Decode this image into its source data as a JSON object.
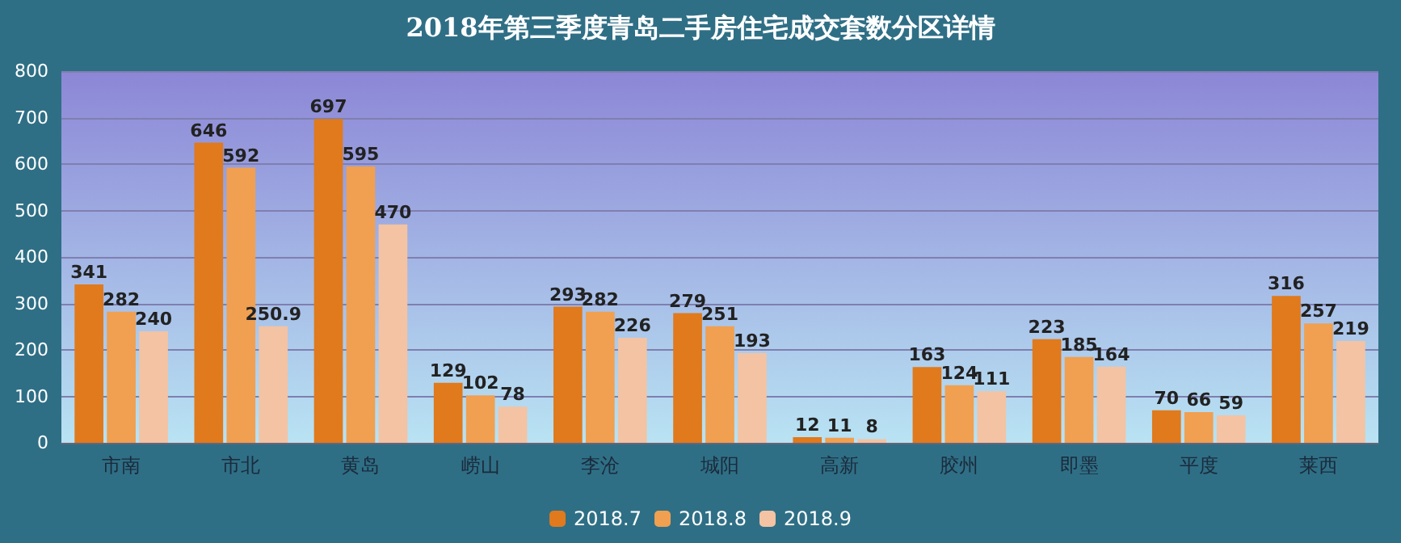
{
  "chart_data": {
    "type": "bar",
    "title": "2018年第三季度青岛二手房住宅成交套数分区详情",
    "categories": [
      "市南",
      "市北",
      "黄岛",
      "崂山",
      "李沧",
      "城阳",
      "高新",
      "胶州",
      "即墨",
      "平度",
      "莱西"
    ],
    "series": [
      {
        "name": "2018.7",
        "color": "#e07a1c",
        "values": [
          341,
          646,
          697,
          129,
          293,
          279,
          12,
          163,
          223,
          70,
          316
        ]
      },
      {
        "name": "2018.8",
        "color": "#f0a050",
        "values": [
          282,
          592,
          595,
          102,
          282,
          251,
          11,
          124,
          185,
          66,
          257
        ]
      },
      {
        "name": "2018.9",
        "color": "#f3c3a3",
        "values": [
          240,
          250.9,
          470,
          78,
          226,
          193,
          8,
          111,
          164,
          59,
          219
        ]
      }
    ],
    "data_labels": true,
    "ylim": [
      0,
      800
    ],
    "yticks": [
      0,
      100,
      200,
      300,
      400,
      500,
      600,
      700,
      800
    ],
    "grid": "y",
    "legend": "bottom"
  }
}
